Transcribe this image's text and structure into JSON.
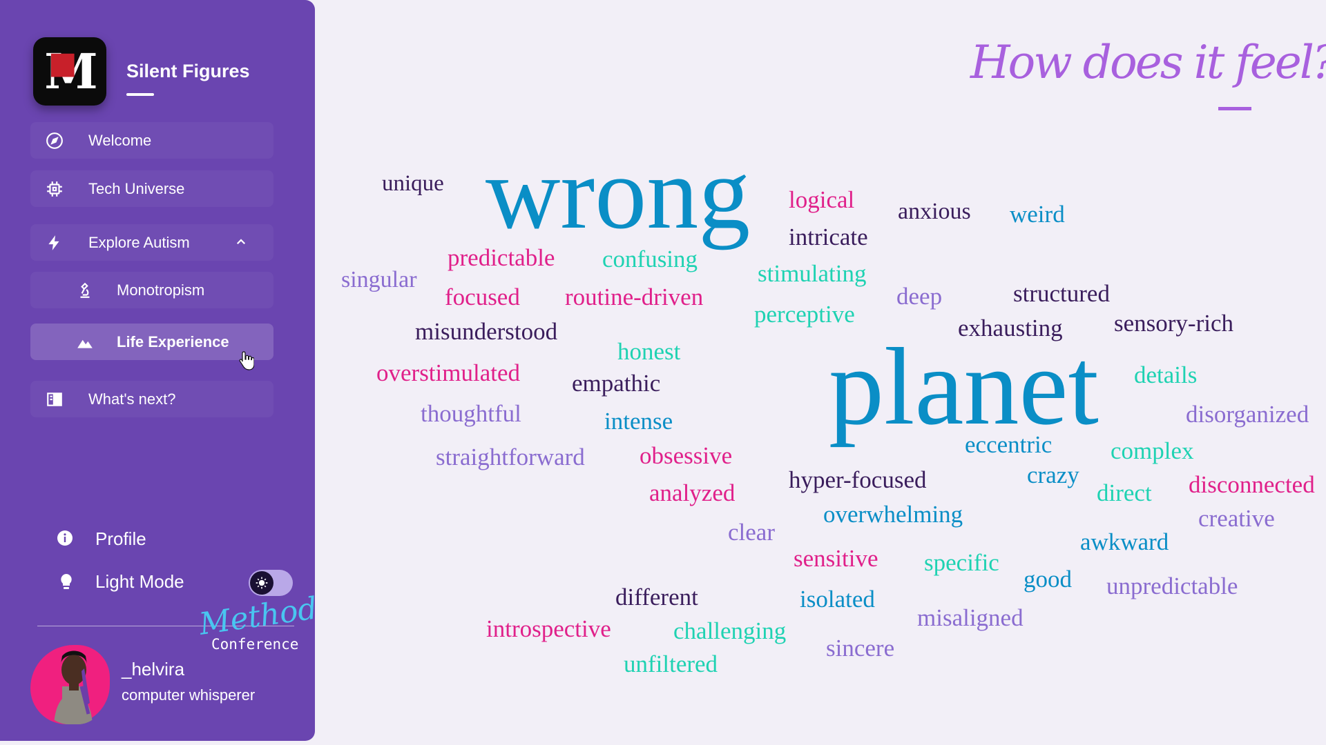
{
  "sidebar": {
    "logo_text": "M",
    "brand": "Silent Figures",
    "nav": [
      {
        "label": "Welcome",
        "icon": "compass-icon"
      },
      {
        "label": "Tech Universe",
        "icon": "chip-icon"
      },
      {
        "label": "Explore Autism",
        "icon": "bolt-icon"
      },
      {
        "label": "Monotropism",
        "icon": "microscope-icon"
      },
      {
        "label": "Life Experience",
        "icon": "mountain-icon"
      },
      {
        "label": "What's next?",
        "icon": "book-icon"
      }
    ],
    "profile_label": "Profile",
    "light_mode_label": "Light Mode",
    "light_mode_on": false,
    "event_logo_script": "Method",
    "event_logo_text": "Conference",
    "user_name": "_helvira",
    "user_title": "computer whisperer"
  },
  "heading": "How does it feel?",
  "word_cloud": [
    "wrong",
    "planet",
    "unique",
    "logical",
    "intricate",
    "anxious",
    "weird",
    "predictable",
    "confusing",
    "stimulating",
    "singular",
    "focused",
    "routine-driven",
    "perceptive",
    "deep",
    "structured",
    "sensory-rich",
    "exhausting",
    "misunderstood",
    "honest",
    "overstimulated",
    "empathic",
    "details",
    "thoughtful",
    "intense",
    "disorganized",
    "straightforward",
    "obsessive",
    "eccentric",
    "complex",
    "hyper-focused",
    "crazy",
    "direct",
    "disconnected",
    "analyzed",
    "overwhelming",
    "creative",
    "clear",
    "awkward",
    "sensitive",
    "specific",
    "good",
    "unpredictable",
    "different",
    "isolated",
    "introspective",
    "challenging",
    "misaligned",
    "sincere",
    "unfiltered"
  ],
  "colors": {
    "sidebar": "#6a45b0",
    "heading": "#a860de",
    "word_blue": "#0a8ec6",
    "word_pink": "#e0208a",
    "word_teal": "#1fd2b2",
    "word_dark": "#3a1d5c",
    "word_lavender": "#8a6cd0"
  }
}
